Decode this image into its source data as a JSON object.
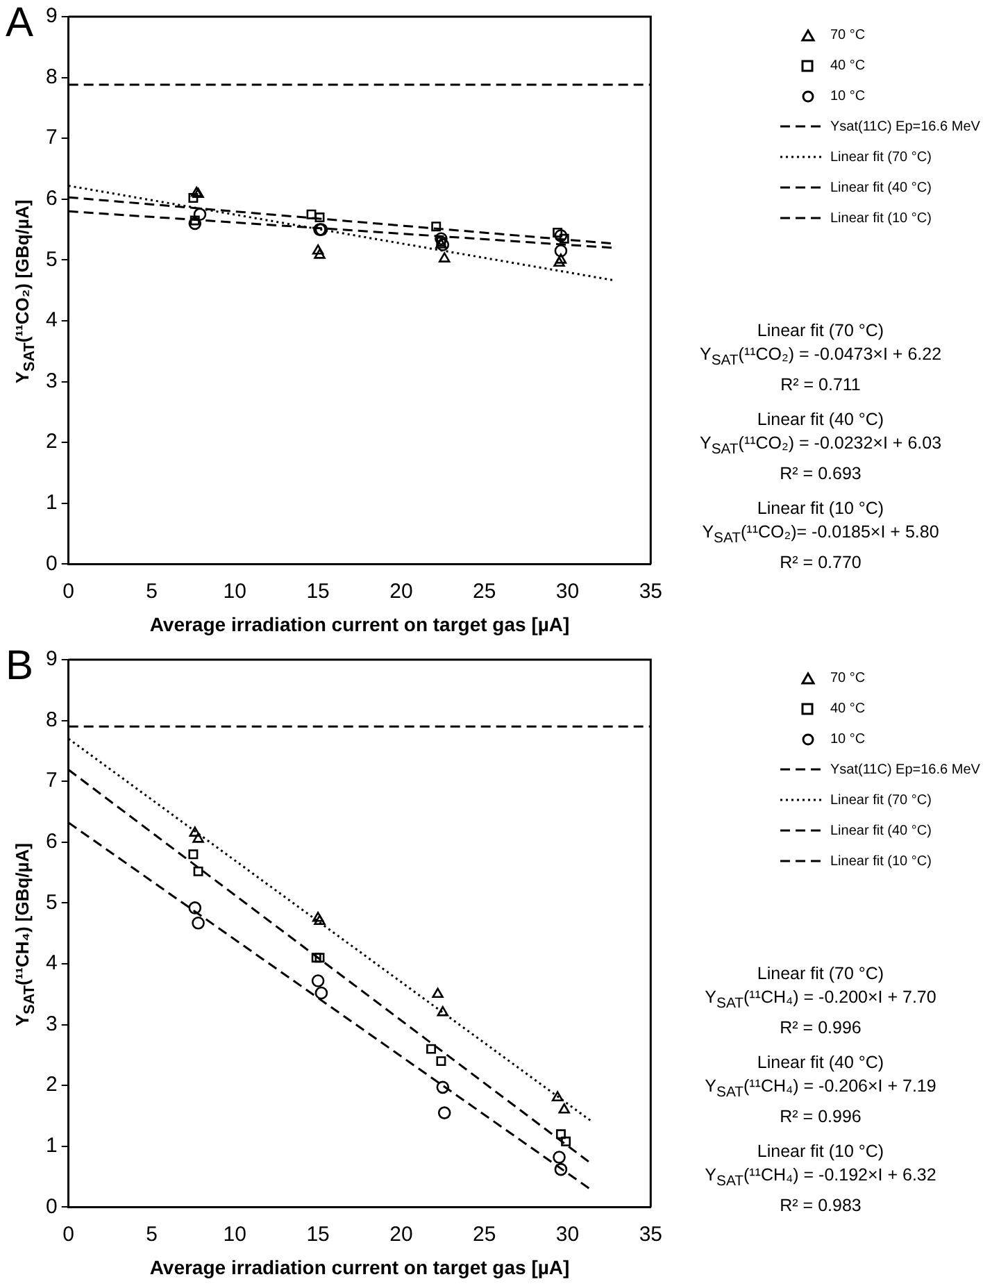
{
  "chart_data": [
    {
      "type": "scatter",
      "title": "A",
      "xlabel": "Average irradiation current on target gas [µA]",
      "ylabel": "Y$_{SAT}$(¹¹CO₂) [GBq/µA]",
      "xlim": [
        0,
        35
      ],
      "xticks": [
        0,
        5,
        10,
        15,
        20,
        25,
        30,
        35
      ],
      "ylim": [
        0,
        9
      ],
      "yticks": [
        0,
        1,
        2,
        3,
        4,
        5,
        6,
        7,
        8,
        9
      ],
      "grid": false,
      "legend": "right",
      "series": [
        {
          "name": "70 °C",
          "type": "scatter",
          "marker": "triangle",
          "color": "#000000",
          "x": [
            7.7,
            7.8,
            15.0,
            15.1,
            22.4,
            22.6,
            29.5,
            29.6
          ],
          "values": [
            6.1,
            6.08,
            5.15,
            5.08,
            5.25,
            5.02,
            4.95,
            5.0
          ]
        },
        {
          "name": "40 °C",
          "type": "scatter",
          "marker": "square",
          "color": "#000000",
          "x": [
            7.5,
            7.6,
            14.6,
            15.1,
            22.1,
            22.4,
            29.4,
            29.8
          ],
          "values": [
            6.02,
            5.65,
            5.75,
            5.7,
            5.55,
            5.3,
            5.45,
            5.35
          ]
        },
        {
          "name": "10 °C",
          "type": "scatter",
          "marker": "circle",
          "color": "#000000",
          "x": [
            7.6,
            7.9,
            15.1,
            15.2,
            22.4,
            22.5,
            29.6,
            29.6
          ],
          "values": [
            5.6,
            5.75,
            5.5,
            5.5,
            5.35,
            5.25,
            5.4,
            5.15
          ]
        },
        {
          "name": "Ysat(11C) Ep=16.6 MeV",
          "type": "line",
          "line_style": "dashed",
          "color": "#000000",
          "x": [
            0,
            35
          ],
          "values": [
            7.88,
            7.88
          ]
        },
        {
          "name": "Linear fit (70 °C)",
          "type": "line",
          "line_style": "dotted",
          "color": "#000000",
          "x": [
            0,
            32.7
          ],
          "values": [
            6.22,
            4.67
          ]
        },
        {
          "name": "Linear fit (40 °C)",
          "type": "line",
          "line_style": "dashed",
          "color": "#000000",
          "x": [
            0,
            32.7
          ],
          "values": [
            6.03,
            5.27
          ]
        },
        {
          "name": "Linear fit (10 °C)",
          "type": "line",
          "line_style": "dashed",
          "color": "#000000",
          "x": [
            0,
            32.7
          ],
          "values": [
            5.8,
            5.2
          ]
        }
      ],
      "annotations": [
        "Linear fit (70 °C)\nY$_{SAT}$(¹¹CO₂) = -0.0473×I + 6.22\nR² = 0.711",
        "Linear fit (40 °C)\nY$_{SAT}$(¹¹CO₂) = -0.0232×I + 6.03\nR² = 0.693",
        "Linear fit (10 °C)\nY$_{SAT}$(¹¹CO₂)= -0.0185×I + 5.80\nR² = 0.770"
      ]
    },
    {
      "type": "scatter",
      "title": "B",
      "xlabel": "Average irradiation current on target gas [µA]",
      "ylabel": "Y$_{SAT}$(¹¹CH₄) [GBq/µA]",
      "xlim": [
        0,
        35
      ],
      "xticks": [
        0,
        5,
        10,
        15,
        20,
        25,
        30,
        35
      ],
      "ylim": [
        0,
        9
      ],
      "yticks": [
        0,
        1,
        2,
        3,
        4,
        5,
        6,
        7,
        8,
        9
      ],
      "grid": false,
      "legend": "right",
      "series": [
        {
          "name": "70 °C",
          "type": "scatter",
          "marker": "triangle",
          "color": "#000000",
          "x": [
            7.6,
            7.8,
            15.0,
            15.1,
            22.2,
            22.5,
            29.4,
            29.8
          ],
          "values": [
            6.15,
            6.05,
            4.75,
            4.7,
            3.5,
            3.2,
            1.8,
            1.6
          ]
        },
        {
          "name": "40 °C",
          "type": "scatter",
          "marker": "square",
          "color": "#000000",
          "x": [
            7.5,
            7.8,
            14.9,
            15.1,
            21.8,
            22.4,
            29.6,
            29.9
          ],
          "values": [
            5.8,
            5.52,
            4.1,
            4.1,
            2.6,
            2.4,
            1.2,
            1.08
          ]
        },
        {
          "name": "10 °C",
          "type": "scatter",
          "marker": "circle",
          "color": "#000000",
          "x": [
            7.6,
            7.8,
            15.0,
            15.2,
            22.5,
            22.6,
            29.5,
            29.6
          ],
          "values": [
            4.92,
            4.67,
            3.72,
            3.52,
            1.97,
            1.55,
            0.82,
            0.62
          ]
        },
        {
          "name": "Ysat(11C) Ep=16.6 MeV",
          "type": "line",
          "line_style": "dashed",
          "color": "#000000",
          "x": [
            0,
            35
          ],
          "values": [
            7.9,
            7.9
          ]
        },
        {
          "name": "Linear fit (70 °C)",
          "type": "line",
          "line_style": "dotted",
          "color": "#000000",
          "x": [
            0,
            31.5
          ],
          "values": [
            7.7,
            1.4
          ]
        },
        {
          "name": "Linear fit (40 °C)",
          "type": "line",
          "line_style": "dashed",
          "color": "#000000",
          "x": [
            0,
            31.5
          ],
          "values": [
            7.19,
            0.7
          ]
        },
        {
          "name": "Linear fit (10 °C)",
          "type": "line",
          "line_style": "dashed",
          "color": "#000000",
          "x": [
            0,
            31.5
          ],
          "values": [
            6.32,
            0.27
          ]
        }
      ],
      "annotations": [
        "Linear fit (70 °C)\nY$_{SAT}$(¹¹CH₄) = -0.200×I + 7.70\nR² = 0.996",
        "Linear fit (40 °C)\nY$_{SAT}$(¹¹CH₄) = -0.206×I + 7.19\nR² = 0.996",
        "Linear fit (10 °C)\nY$_{SAT}$(¹¹CH₄) = -0.192×I + 6.32\nR² = 0.983"
      ]
    }
  ]
}
